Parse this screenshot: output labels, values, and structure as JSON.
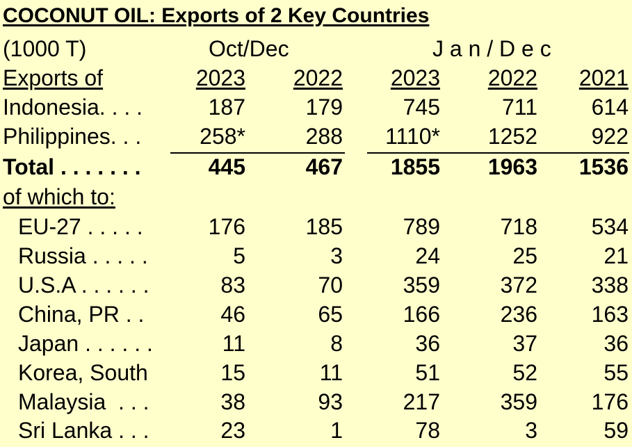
{
  "title": "COCONUT OIL:  Exports of 2 Key Countries",
  "unit_label": "(1000 T)",
  "period_oct_dec": "Oct/Dec",
  "period_jan_dec": "J a n / D e c",
  "header": {
    "label": "Exports of",
    "years": [
      "2023",
      "2022",
      "2023",
      "2022",
      "2021"
    ]
  },
  "exporters": [
    {
      "label": "Indonesia",
      "dots": ". . . .",
      "values": [
        "187",
        "179",
        "745",
        "711",
        "614"
      ]
    },
    {
      "label": "Philippines",
      "dots": ". . .",
      "values": [
        "258*",
        "288",
        "1110*",
        "1252",
        "922"
      ]
    }
  ],
  "total": {
    "label": "Total",
    "dots": ". . . . . . .",
    "values": [
      "445",
      "467",
      "1855",
      "1963",
      "1536"
    ]
  },
  "of_which_label": "of which to:",
  "destinations": [
    {
      "label": "EU-27",
      "dots": ". . . . .",
      "values": [
        "176",
        "185",
        "789",
        "718",
        "534"
      ]
    },
    {
      "label": "Russia",
      "dots": ". . . . .",
      "values": [
        "5",
        "3",
        "24",
        "25",
        "21"
      ]
    },
    {
      "label": "U.S.A",
      "dots": ". . . . . .",
      "values": [
        "83",
        "70",
        "359",
        "372",
        "338"
      ]
    },
    {
      "label": "China, PR",
      "dots": ". .",
      "values": [
        "46",
        "65",
        "166",
        "236",
        "163"
      ]
    },
    {
      "label": "Japan",
      "dots": ". . . . . .",
      "values": [
        "11",
        "8",
        "36",
        "37",
        "36"
      ]
    },
    {
      "label": "Korea, South",
      "dots": "",
      "values": [
        "15",
        "11",
        "51",
        "52",
        "55"
      ]
    },
    {
      "label": "Malaysia",
      "dots": ". . .",
      "values": [
        "38",
        "93",
        "217",
        "359",
        "176"
      ]
    },
    {
      "label": "Sri Lanka",
      "dots": ". . .",
      "values": [
        "23",
        "1",
        "78",
        "3",
        "59"
      ]
    }
  ]
}
